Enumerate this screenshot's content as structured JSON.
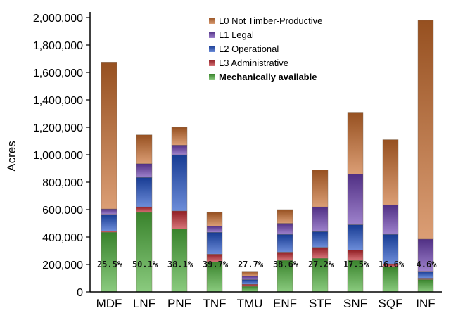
{
  "chart_data": {
    "type": "bar",
    "stacked": true,
    "ylabel": "Acres",
    "ylim": [
      0,
      2000000
    ],
    "y_ticks": [
      "0",
      "200,000",
      "400,000",
      "600,000",
      "800,000",
      "1,000,000",
      "1,200,000",
      "1,400,000",
      "1,600,000",
      "1,800,000",
      "2,000,000"
    ],
    "categories": [
      "MDF",
      "LNF",
      "PNF",
      "TNF",
      "TMU",
      "ENF",
      "STF",
      "SNF",
      "SQF",
      "INF"
    ],
    "series": [
      {
        "name": "Mechanically available",
        "color": "#4caf3a",
        "values": [
          435000,
          580000,
          460000,
          220000,
          40000,
          230000,
          245000,
          230000,
          185000,
          90000
        ]
      },
      {
        "name": "L3 Administrative",
        "color": "#c0282f",
        "values": [
          10000,
          40000,
          130000,
          55000,
          15000,
          60000,
          80000,
          75000,
          20000,
          10000
        ]
      },
      {
        "name": "L2 Operational",
        "color": "#1f4fc4",
        "values": [
          120000,
          215000,
          410000,
          160000,
          35000,
          130000,
          115000,
          185000,
          215000,
          50000
        ]
      },
      {
        "name": "L1 Legal",
        "color": "#6a3fb0",
        "values": [
          40000,
          100000,
          70000,
          45000,
          25000,
          80000,
          180000,
          370000,
          215000,
          235000
        ]
      },
      {
        "name": "L0 Not Timber-Productive",
        "color": "#c86a2a",
        "values": [
          1070000,
          210000,
          130000,
          100000,
          35000,
          100000,
          270000,
          450000,
          475000,
          1595000
        ]
      }
    ],
    "legend_order": [
      "L0 Not Timber-Productive",
      "L1 Legal",
      "L2 Operational",
      "L3 Administrative",
      "Mechanically available"
    ],
    "legend_position": "top-center",
    "percent_labels": [
      "25.5%",
      "50.1%",
      "38.1%",
      "39.7%",
      "27.7%",
      "38.6%",
      "27.2%",
      "17.5%",
      "16.6%",
      "4.6%"
    ],
    "grid": false
  }
}
